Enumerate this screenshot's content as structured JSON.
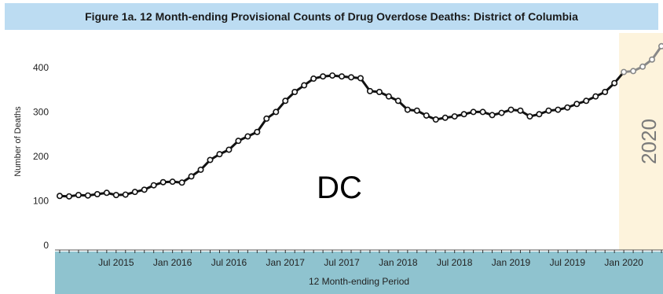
{
  "title": "Figure 1a. 12 Month-ending Provisional Counts of Drug Overdose Deaths: District of Columbia",
  "colors": {
    "title_bg": "#bcdcf2",
    "axis_band": "#8fc3cf",
    "highlight": "#fdf3dc",
    "line": "#111111",
    "line_2020": "#888888",
    "axis_text": "#222222"
  },
  "chart_data": {
    "type": "line",
    "title": "Figure 1a. 12 Month-ending Provisional Counts of Drug Overdose Deaths: District of Columbia",
    "xlabel": "12 Month-ending Period",
    "ylabel": "Number of Deaths",
    "ylim": [
      0,
      460
    ],
    "yticks": [
      0,
      100,
      200,
      300,
      400
    ],
    "x_tick_labels": [
      "Jul 2015",
      "Jan 2016",
      "Jul 2016",
      "Jan 2017",
      "Jul 2017",
      "Jan 2018",
      "Jul 2018",
      "Jan 2019",
      "Jul 2019",
      "Jan 2020"
    ],
    "annotation": "DC",
    "highlight_label": "2020",
    "grid": false,
    "series": [
      {
        "x": [
          "2015-01",
          "2015-02",
          "2015-03",
          "2015-04",
          "2015-05",
          "2015-06",
          "2015-07",
          "2015-08",
          "2015-09",
          "2015-10",
          "2015-11",
          "2015-12",
          "2016-01",
          "2016-02",
          "2016-03",
          "2016-04",
          "2016-05",
          "2016-06",
          "2016-07",
          "2016-08",
          "2016-09",
          "2016-10",
          "2016-11",
          "2016-12",
          "2017-01",
          "2017-02",
          "2017-03",
          "2017-04",
          "2017-05",
          "2017-06",
          "2017-07",
          "2017-08",
          "2017-09",
          "2017-10",
          "2017-11",
          "2017-12",
          "2018-01",
          "2018-02",
          "2018-03",
          "2018-04",
          "2018-05",
          "2018-06",
          "2018-07",
          "2018-08",
          "2018-09",
          "2018-10",
          "2018-11",
          "2018-12",
          "2019-01",
          "2019-02",
          "2019-03",
          "2019-04",
          "2019-05",
          "2019-06",
          "2019-07",
          "2019-08",
          "2019-09",
          "2019-10",
          "2019-11",
          "2019-12",
          "2020-01",
          "2020-02",
          "2020-03",
          "2020-04",
          "2020-05"
        ],
        "values": [
          111,
          110,
          113,
          112,
          115,
          118,
          113,
          114,
          120,
          125,
          135,
          142,
          143,
          141,
          155,
          170,
          192,
          205,
          215,
          235,
          245,
          255,
          285,
          300,
          325,
          345,
          360,
          375,
          380,
          382,
          380,
          378,
          376,
          347,
          345,
          335,
          325,
          305,
          303,
          292,
          283,
          287,
          290,
          295,
          300,
          300,
          293,
          298,
          305,
          303,
          290,
          295,
          303,
          305,
          310,
          318,
          325,
          335,
          345,
          365,
          390,
          392,
          402,
          418,
          448
        ]
      }
    ]
  }
}
